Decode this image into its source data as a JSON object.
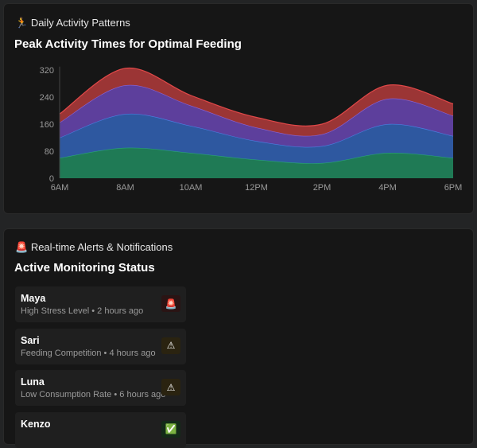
{
  "activity": {
    "section_icon": "runner-icon",
    "section_label": "Daily Activity Patterns",
    "title": "Peak Activity Times for Optimal Feeding"
  },
  "chart_data": {
    "type": "area",
    "stacked": true,
    "categories": [
      "6AM",
      "8AM",
      "10AM",
      "12PM",
      "2PM",
      "4PM",
      "6PM"
    ],
    "yticks": [
      "0",
      "80",
      "160",
      "240",
      "320"
    ],
    "ylim": [
      0,
      330
    ],
    "grid": false,
    "series": [
      {
        "color": "#1f7a55",
        "line": "#2aa37a",
        "values": [
          60,
          90,
          75,
          55,
          45,
          75,
          60
        ]
      },
      {
        "color": "#2e58a0",
        "line": "#4a7fe0",
        "values": [
          60,
          100,
          80,
          55,
          50,
          85,
          65
        ]
      },
      {
        "color": "#5d3f9c",
        "line": "#8a65d8",
        "values": [
          45,
          85,
          60,
          40,
          35,
          75,
          60
        ]
      },
      {
        "color": "#9b3535",
        "line": "#e04848",
        "values": [
          25,
          50,
          30,
          30,
          30,
          40,
          35
        ]
      }
    ]
  },
  "alerts": {
    "section_icon": "siren-icon",
    "section_label": "Real-time Alerts & Notifications",
    "title": "Active Monitoring Status",
    "items": [
      {
        "name": "Maya",
        "detail": "High Stress Level • 2 hours ago",
        "icon": "🚨",
        "icon_name": "siren-icon",
        "badge_bg": "#2a1414"
      },
      {
        "name": "Sari",
        "detail": "Feeding Competition • 4 hours ago",
        "icon": "⚠",
        "icon_name": "warning-icon",
        "badge_bg": "#2a2310"
      },
      {
        "name": "Luna",
        "detail": "Low Consumption Rate • 6 hours ago",
        "icon": "⚠",
        "icon_name": "warning-icon",
        "badge_bg": "#2a2310"
      },
      {
        "name": "Kenzo",
        "detail": "",
        "icon": "✅",
        "icon_name": "check-icon",
        "badge_bg": "#132a18"
      }
    ]
  }
}
